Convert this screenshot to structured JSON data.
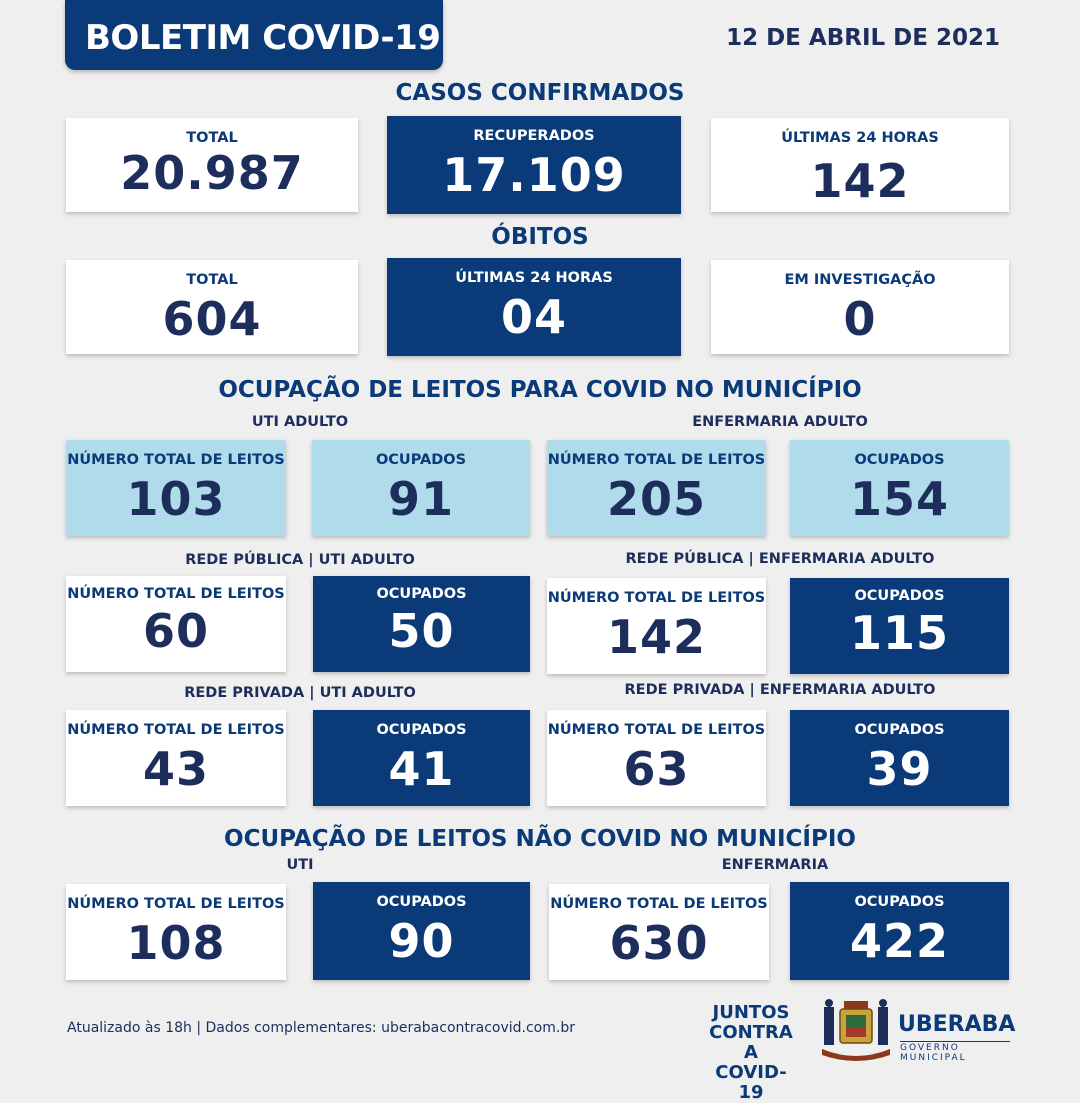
{
  "header": {
    "title": "BOLETIM COVID-19",
    "date": "12 DE ABRIL DE 2021"
  },
  "casos": {
    "title": "CASOS CONFIRMADOS",
    "total": {
      "label": "TOTAL",
      "value": "20.987"
    },
    "recuperados": {
      "label": "RECUPERADOS",
      "value": "17.109"
    },
    "ultimas": {
      "label": "ÚLTIMAS 24 HORAS",
      "value": "142"
    }
  },
  "obitos": {
    "title": "ÓBITOS",
    "total": {
      "label": "TOTAL",
      "value": "604"
    },
    "ultimas": {
      "label": "ÚLTIMAS 24 HORAS",
      "value": "04"
    },
    "investigacao": {
      "label": "EM INVESTIGAÇÃO",
      "value": "0"
    }
  },
  "leitos_covid": {
    "title": "OCUPAÇÃO DE LEITOS PARA COVID NO MUNICÍPIO",
    "uti": {
      "title": "UTI ADULTO",
      "total": {
        "label": "NÚMERO TOTAL DE LEITOS",
        "value": "103"
      },
      "ocupados": {
        "label": "OCUPADOS",
        "value": "91"
      }
    },
    "enfermaria": {
      "title": "ENFERMARIA ADULTO",
      "total": {
        "label": "NÚMERO TOTAL DE LEITOS",
        "value": "205"
      },
      "ocupados": {
        "label": "OCUPADOS",
        "value": "154"
      }
    },
    "publica_uti": {
      "title": "REDE PÚBLICA | UTI ADULTO",
      "total": {
        "label": "NÚMERO TOTAL DE LEITOS",
        "value": "60"
      },
      "ocupados": {
        "label": "OCUPADOS",
        "value": "50"
      }
    },
    "publica_enf": {
      "title": "REDE PÚBLICA | ENFERMARIA ADULTO",
      "total": {
        "label": "NÚMERO TOTAL DE LEITOS",
        "value": "142"
      },
      "ocupados": {
        "label": "OCUPADOS",
        "value": "115"
      }
    },
    "privada_uti": {
      "title": "REDE PRIVADA | UTI ADULTO",
      "total": {
        "label": "NÚMERO TOTAL DE LEITOS",
        "value": "43"
      },
      "ocupados": {
        "label": "OCUPADOS",
        "value": "41"
      }
    },
    "privada_enf": {
      "title": "REDE PRIVADA | ENFERMARIA ADULTO",
      "total": {
        "label": "NÚMERO TOTAL DE LEITOS",
        "value": "63"
      },
      "ocupados": {
        "label": "OCUPADOS",
        "value": "39"
      }
    }
  },
  "leitos_nao_covid": {
    "title": "OCUPAÇÃO DE LEITOS NÃO COVID NO MUNICÍPIO",
    "uti": {
      "title": "UTI",
      "total": {
        "label": "NÚMERO TOTAL DE LEITOS",
        "value": "108"
      },
      "ocupados": {
        "label": "OCUPADOS",
        "value": "90"
      }
    },
    "enfermaria": {
      "title": "ENFERMARIA",
      "total": {
        "label": "NÚMERO TOTAL DE LEITOS",
        "value": "630"
      },
      "ocupados": {
        "label": "OCUPADOS",
        "value": "422"
      }
    }
  },
  "footer": {
    "text": "Atualizado às 18h | Dados complementares: uberabacontracovid.com.br",
    "juntos": [
      "JUNTOS",
      "CONTRA A",
      "COVID-19"
    ],
    "brand": "UBERABA",
    "brand_sub": "GOVERNO MUNICIPAL"
  },
  "colors": {
    "navy": "#0b3a78",
    "text": "#1d2d5c",
    "light_blue": "#b0dbea",
    "background": "#efefef"
  }
}
